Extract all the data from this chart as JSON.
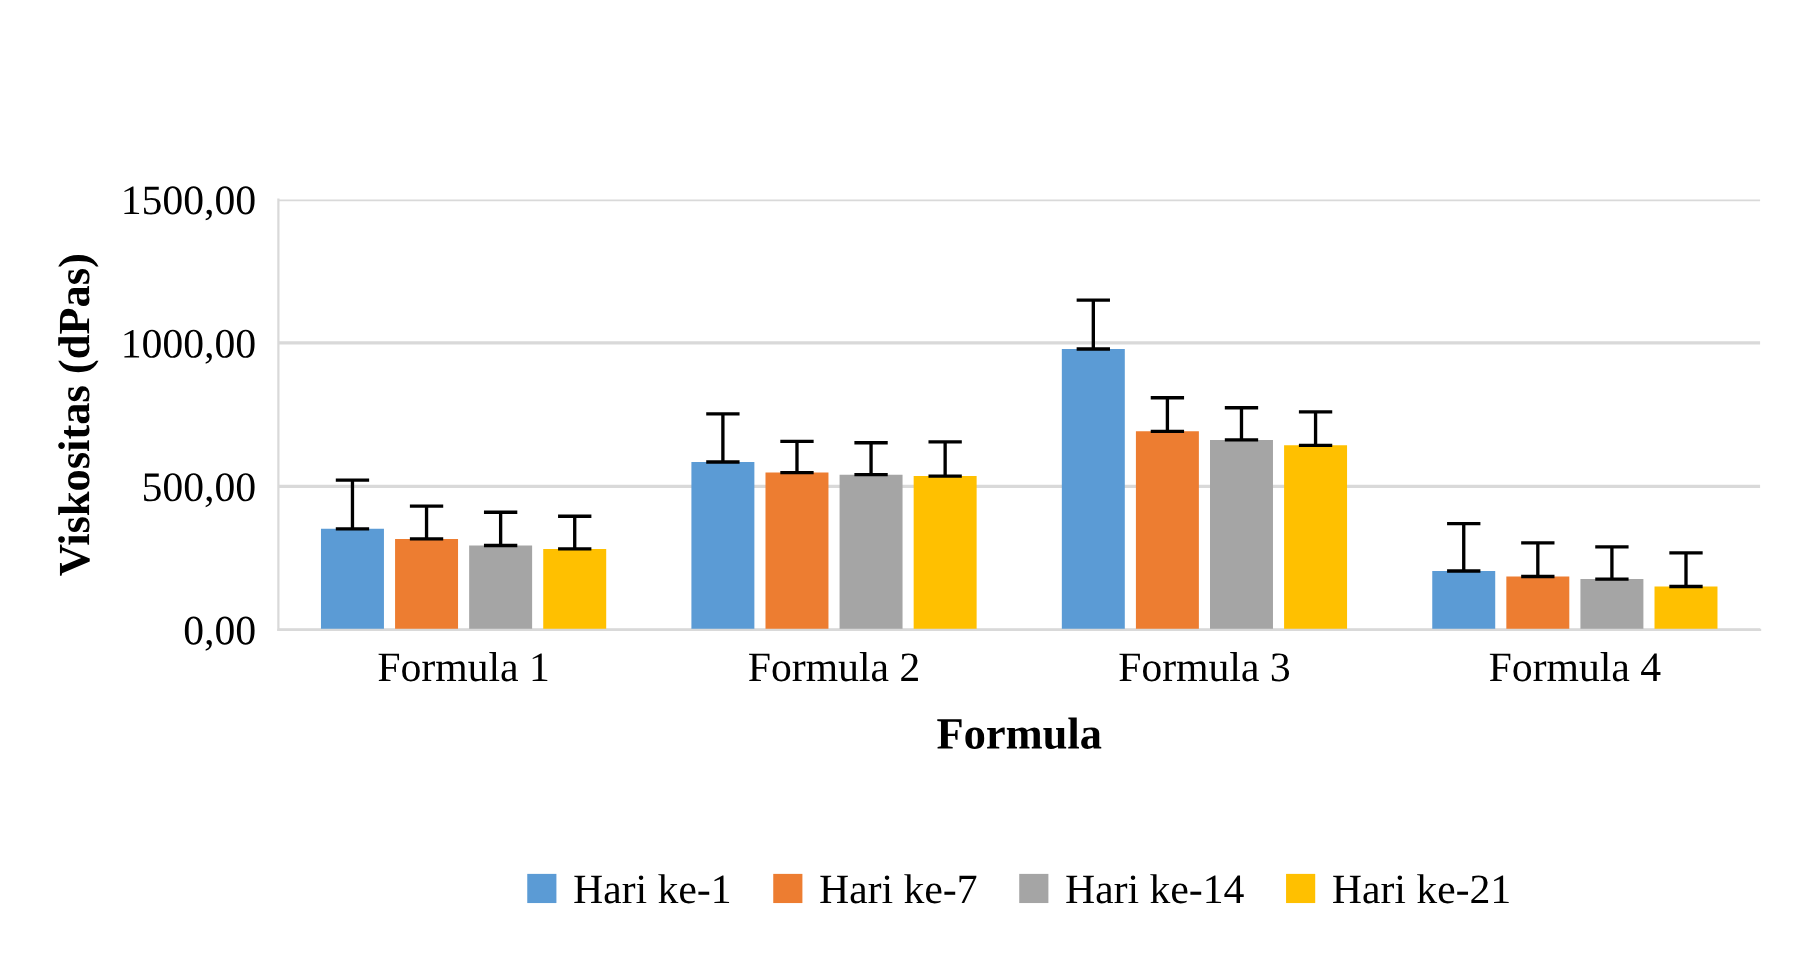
{
  "chart_data": {
    "type": "bar",
    "xlabel": "Formula",
    "ylabel": "Viskositas (dPas)",
    "categories": [
      "Formula 1",
      "Formula 2",
      "Formula 3",
      "Formula 4"
    ],
    "series": [
      {
        "name": "Hari ke-1",
        "color": "#5b9bd5",
        "values": [
          352,
          585,
          979,
          205
        ],
        "errors": [
          [
            352,
            522
          ],
          [
            585,
            753
          ],
          [
            979,
            1149
          ],
          [
            205,
            370
          ]
        ]
      },
      {
        "name": "Hari ke-7",
        "color": "#ed7d31",
        "values": [
          317,
          548,
          692,
          186
        ],
        "errors": [
          [
            317,
            431
          ],
          [
            548,
            657
          ],
          [
            692,
            809
          ],
          [
            186,
            303
          ]
        ]
      },
      {
        "name": "Hari ke-14",
        "color": "#a5a5a5",
        "values": [
          294,
          541,
          662,
          177
        ],
        "errors": [
          [
            294,
            410
          ],
          [
            541,
            652
          ],
          [
            662,
            774
          ],
          [
            177,
            289
          ]
        ]
      },
      {
        "name": "Hari ke-21",
        "color": "#ffc000",
        "values": [
          282,
          536,
          643,
          151
        ],
        "errors": [
          [
            282,
            396
          ],
          [
            536,
            655
          ],
          [
            643,
            760
          ],
          [
            151,
            268
          ]
        ]
      }
    ],
    "ylim": [
      0,
      1500
    ],
    "yticks": [
      {
        "value": 0,
        "label": "0,00"
      },
      {
        "value": 500,
        "label": "500,00"
      },
      {
        "value": 1000,
        "label": "1000,00"
      },
      {
        "value": 1500,
        "label": "1500,00"
      }
    ],
    "grid": "y",
    "legend": "bottom"
  }
}
